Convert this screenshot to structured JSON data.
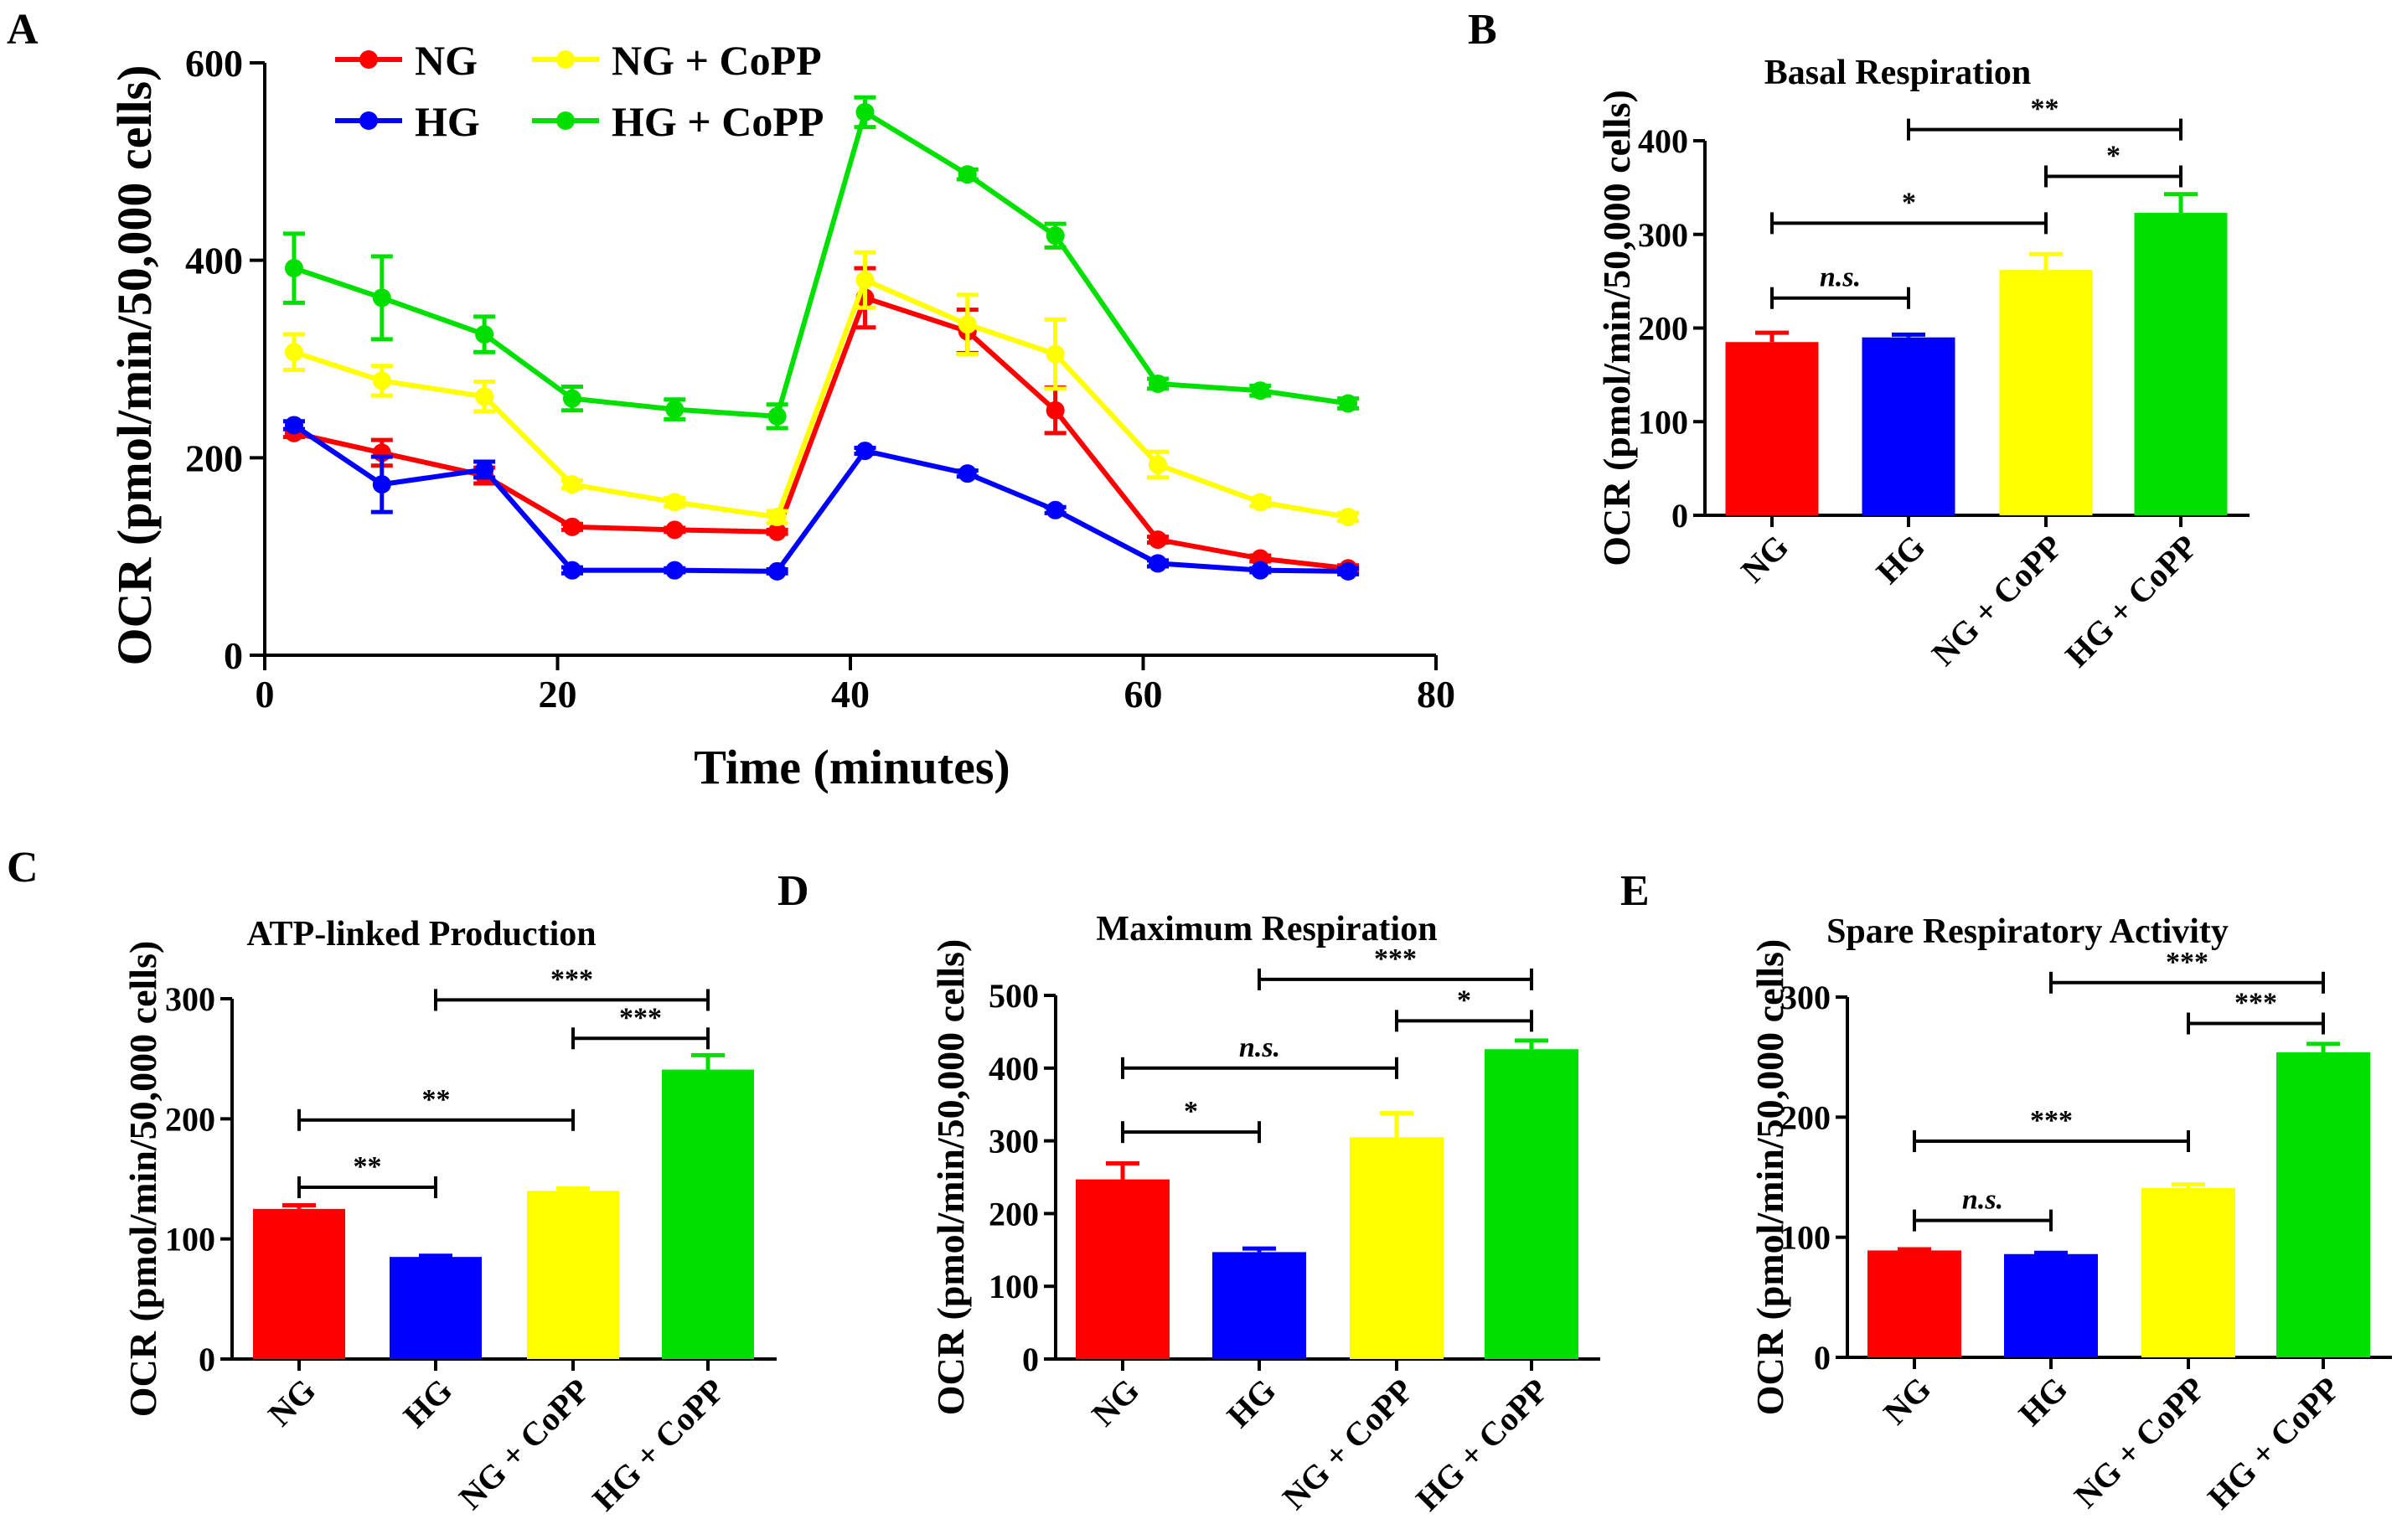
{
  "colors": {
    "NG": "#ff0000",
    "HG": "#0000ff",
    "NG + CoPP": "#ffff00",
    "HG + CoPP": "#00e000"
  },
  "chart_data": [
    {
      "panel": "A",
      "type": "line",
      "title": "",
      "xlabel": "Time (minutes)",
      "ylabel": "OCR (pmol/min/50,000 cells)",
      "xlim": [
        0,
        80
      ],
      "ylim": [
        0,
        600
      ],
      "xticks": [
        0,
        20,
        40,
        60,
        80
      ],
      "yticks": [
        0,
        200,
        400,
        600
      ],
      "legend": "top-left",
      "x": [
        2,
        8,
        15,
        21,
        28,
        35,
        41,
        48,
        54,
        61,
        68,
        74
      ],
      "series": [
        {
          "name": "NG",
          "color": "#ff0000",
          "values": [
            225,
            205,
            182,
            130,
            127,
            125,
            362,
            328,
            248,
            117,
            98,
            88
          ],
          "errors": [
            4,
            13,
            8,
            3,
            2,
            2,
            30,
            22,
            23,
            3,
            3,
            3
          ]
        },
        {
          "name": "HG",
          "color": "#0000ff",
          "values": [
            233,
            173,
            188,
            86,
            86,
            85,
            207,
            184,
            147,
            93,
            86,
            85
          ],
          "errors": [
            4,
            28,
            8,
            3,
            2,
            2,
            3,
            3,
            3,
            3,
            2,
            3
          ]
        },
        {
          "name": "NG + CoPP",
          "color": "#ffff00",
          "values": [
            307,
            278,
            262,
            173,
            155,
            140,
            380,
            335,
            305,
            193,
            155,
            140
          ],
          "errors": [
            18,
            15,
            15,
            4,
            4,
            6,
            28,
            30,
            35,
            13,
            4,
            4
          ]
        },
        {
          "name": "HG + CoPP",
          "color": "#00e000",
          "values": [
            392,
            362,
            325,
            260,
            249,
            242,
            550,
            487,
            425,
            275,
            268,
            255
          ],
          "errors": [
            35,
            42,
            18,
            12,
            10,
            12,
            15,
            5,
            12,
            5,
            5,
            5
          ]
        }
      ]
    },
    {
      "panel": "B",
      "type": "bar",
      "title": "Basal Respiration",
      "xlabel": "",
      "ylabel": "OCR (pmol/min/50,000 cells)",
      "ylim": [
        0,
        400
      ],
      "yticks": [
        0,
        100,
        200,
        300,
        400
      ],
      "categories": [
        "NG",
        "HG",
        "NG + CoPP",
        "HG + CoPP"
      ],
      "values": [
        185,
        190,
        262,
        323
      ],
      "errors": [
        10,
        3,
        17,
        20
      ],
      "significance": [
        {
          "from": 0,
          "to": 1,
          "label": "n.s.",
          "italic": true,
          "y": 232
        },
        {
          "from": 0,
          "to": 2,
          "label": "*",
          "italic": false,
          "y": 312
        },
        {
          "from": 2,
          "to": 3,
          "label": "*",
          "italic": false,
          "y": 362
        },
        {
          "from": 1,
          "to": 3,
          "label": "**",
          "italic": false,
          "y": 412
        }
      ]
    },
    {
      "panel": "C",
      "type": "bar",
      "title": "ATP-linked Production",
      "xlabel": "",
      "ylabel": "OCR (pmol/min/50,000 cells)",
      "ylim": [
        0,
        300
      ],
      "yticks": [
        0,
        100,
        200,
        300
      ],
      "categories": [
        "NG",
        "HG",
        "NG + CoPP",
        "HG + CoPP"
      ],
      "values": [
        125,
        85,
        140,
        241
      ],
      "errors": [
        3,
        1,
        2,
        12
      ],
      "significance": [
        {
          "from": 0,
          "to": 1,
          "label": "**",
          "italic": false,
          "y": 143
        },
        {
          "from": 0,
          "to": 2,
          "label": "**",
          "italic": false,
          "y": 199
        },
        {
          "from": 2,
          "to": 3,
          "label": "***",
          "italic": false,
          "y": 267
        },
        {
          "from": 1,
          "to": 3,
          "label": "***",
          "italic": false,
          "y": 299
        }
      ]
    },
    {
      "panel": "D",
      "type": "bar",
      "title": "Maximum Respiration",
      "xlabel": "",
      "ylabel": "OCR (pmol/min/50,000 cells)",
      "ylim": [
        0,
        500
      ],
      "yticks": [
        0,
        100,
        200,
        300,
        400,
        500
      ],
      "categories": [
        "NG",
        "HG",
        "NG + CoPP",
        "HG + CoPP"
      ],
      "values": [
        247,
        147,
        305,
        426
      ],
      "errors": [
        22,
        5,
        33,
        12
      ],
      "significance": [
        {
          "from": 0,
          "to": 1,
          "label": "*",
          "italic": false,
          "y": 312
        },
        {
          "from": 0,
          "to": 2,
          "label": "n.s.",
          "italic": true,
          "y": 400
        },
        {
          "from": 2,
          "to": 3,
          "label": "*",
          "italic": false,
          "y": 465
        },
        {
          "from": 1,
          "to": 3,
          "label": "***",
          "italic": false,
          "y": 522
        }
      ]
    },
    {
      "panel": "E",
      "type": "bar",
      "title": "Spare Respiratory Activity",
      "xlabel": "",
      "ylabel": "OCR (pmol/min/50,000 cells)",
      "ylim": [
        0,
        300
      ],
      "yticks": [
        0,
        100,
        200,
        300
      ],
      "categories": [
        "NG",
        "HG",
        "NG + CoPP",
        "HG + CoPP"
      ],
      "values": [
        89,
        86,
        141,
        254
      ],
      "errors": [
        1,
        1,
        3,
        7
      ],
      "significance": [
        {
          "from": 0,
          "to": 1,
          "label": "n.s.",
          "italic": true,
          "y": 114
        },
        {
          "from": 0,
          "to": 2,
          "label": "***",
          "italic": false,
          "y": 180
        },
        {
          "from": 2,
          "to": 3,
          "label": "***",
          "italic": false,
          "y": 278
        },
        {
          "from": 1,
          "to": 3,
          "label": "***",
          "italic": false,
          "y": 312
        }
      ]
    }
  ]
}
